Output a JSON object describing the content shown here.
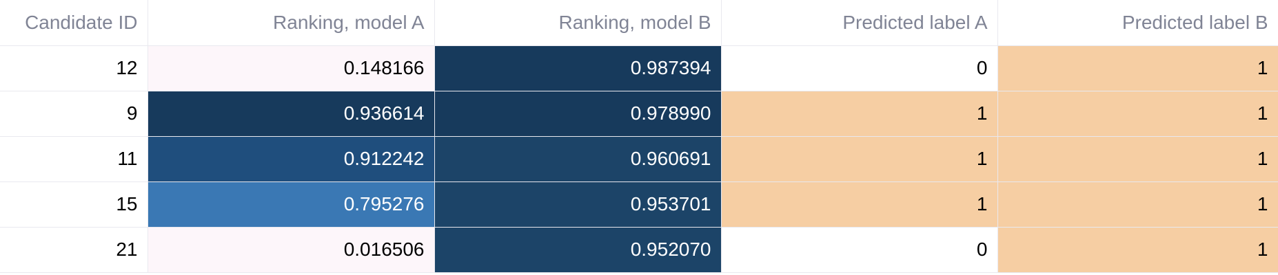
{
  "colors": {
    "header_text": "#808495",
    "grid_line": "#e9e9ef",
    "highlight_orange": "#f6ceA3"
  },
  "table": {
    "columns": [
      "Candidate ID",
      "Ranking, model A",
      "Ranking, model B",
      "Predicted label A",
      "Predicted label B"
    ],
    "rows": [
      {
        "id": "12",
        "rank_a": "0.148166",
        "rank_b": "0.987394",
        "label_a": "0",
        "label_b": "1",
        "bg": [
          "#ffffff",
          "#fdf6fa",
          "#173a5c",
          "#ffffff",
          "#f6cea3"
        ],
        "fg": [
          "#000000",
          "#000000",
          "#ffffff",
          "#000000",
          "#000000"
        ]
      },
      {
        "id": "9",
        "rank_a": "0.936614",
        "rank_b": "0.978990",
        "label_a": "1",
        "label_b": "1",
        "bg": [
          "#ffffff",
          "#173a5c",
          "#173a5c",
          "#f6cea3",
          "#f6cea3"
        ],
        "fg": [
          "#000000",
          "#ffffff",
          "#ffffff",
          "#000000",
          "#000000"
        ]
      },
      {
        "id": "11",
        "rank_a": "0.912242",
        "rank_b": "0.960691",
        "label_a": "1",
        "label_b": "1",
        "bg": [
          "#ffffff",
          "#1f4e7d",
          "#1c4468",
          "#f6cea3",
          "#f6cea3"
        ],
        "fg": [
          "#000000",
          "#ffffff",
          "#ffffff",
          "#000000",
          "#000000"
        ]
      },
      {
        "id": "15",
        "rank_a": "0.795276",
        "rank_b": "0.953701",
        "label_a": "1",
        "label_b": "1",
        "bg": [
          "#ffffff",
          "#3a78b4",
          "#1c4468",
          "#f6cea3",
          "#f6cea3"
        ],
        "fg": [
          "#000000",
          "#ffffff",
          "#ffffff",
          "#000000",
          "#000000"
        ]
      },
      {
        "id": "21",
        "rank_a": "0.016506",
        "rank_b": "0.952070",
        "label_a": "0",
        "label_b": "1",
        "bg": [
          "#ffffff",
          "#fdf6fa",
          "#1c4468",
          "#ffffff",
          "#f6cea3"
        ],
        "fg": [
          "#000000",
          "#000000",
          "#ffffff",
          "#000000",
          "#000000"
        ]
      }
    ]
  }
}
